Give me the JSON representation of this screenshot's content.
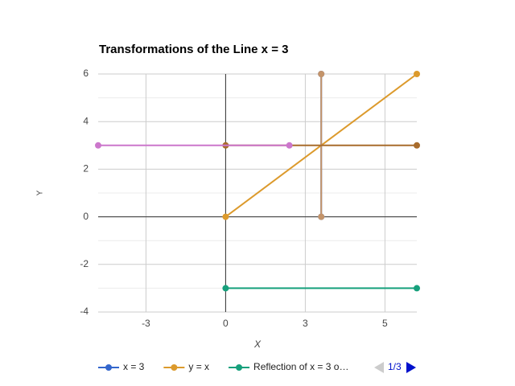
{
  "chart_data": {
    "type": "line",
    "title": "Transformations of the Line x = 3",
    "xlabel": "X",
    "ylabel": "Y",
    "xlim": [
      -4,
      6
    ],
    "xticks": [
      {
        "value": -2.5,
        "label": "-3"
      },
      0,
      {
        "value": 2.5,
        "label": "3"
      },
      5
    ],
    "ylim": [
      -4,
      6
    ],
    "yticks": [
      -4,
      -2,
      0,
      2,
      4,
      6
    ],
    "grid": true,
    "legend": "bottom",
    "legend_page": "1/3",
    "series": [
      {
        "name": "x = 3",
        "color": "#3366cc",
        "x": [
          3,
          3
        ],
        "values": [
          0,
          6
        ]
      },
      {
        "name": "y = x",
        "color": "#dc9a2c",
        "x": [
          0,
          6
        ],
        "values": [
          0,
          6
        ]
      },
      {
        "name": "Reflection of x = 3 o…",
        "color": "#16a07c",
        "x": [
          0,
          6
        ],
        "values": [
          -3,
          -3
        ]
      },
      {
        "color": "#c4946a",
        "x": [
          3,
          3
        ],
        "values": [
          0,
          6
        ]
      },
      {
        "color": "#a86c2c",
        "x": [
          0,
          6
        ],
        "values": [
          3,
          3
        ]
      },
      {
        "color": "#cc77cc",
        "x": [
          -4,
          2
        ],
        "values": [
          3,
          3
        ]
      }
    ]
  }
}
